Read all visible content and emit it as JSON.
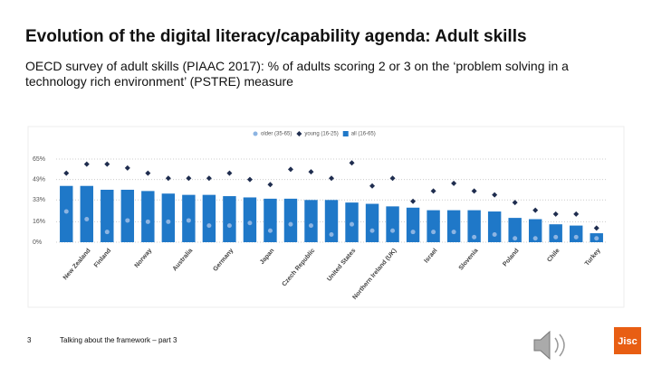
{
  "slide": {
    "title": "Evolution of the digital literacy/capability agenda: Adult skills",
    "subtitle": "OECD survey of adult skills (PIAAC 2017): % of adults scoring 2 or 3 on the ‘problem solving in a technology rich environment’ (PSTRE) measure",
    "page_number": "3",
    "footer": "Talking about the framework – part 3",
    "logo": "Jisc"
  },
  "chart_data": {
    "type": "bar",
    "categories": [
      null,
      "New Zealand",
      "Finland",
      null,
      "Norway",
      null,
      "Australia",
      null,
      "Germany",
      null,
      "Japan",
      null,
      "Czech Republic",
      null,
      "United States",
      null,
      "Northern Ireland (UK)",
      null,
      "Israel",
      null,
      "Slovenia",
      null,
      "Poland",
      null,
      "Chile",
      null,
      "Turkey"
    ],
    "series": [
      {
        "name": "older (35-65)",
        "color": "#8cb4e2",
        "marker": "circle",
        "values": [
          24,
          18,
          8,
          17,
          16,
          16,
          17,
          13,
          13,
          15,
          9,
          14,
          13,
          6,
          14,
          9,
          9,
          8,
          8,
          8,
          4,
          6,
          3,
          3,
          4,
          4,
          3
        ]
      },
      {
        "name": "young (16-25)",
        "color": "#1f2d4f",
        "marker": "diamond",
        "values": [
          54,
          61,
          61,
          58,
          54,
          50,
          50,
          50,
          54,
          49,
          45,
          57,
          55,
          50,
          62,
          44,
          50,
          32,
          40,
          46,
          40,
          37,
          31,
          25,
          22,
          22,
          11
        ]
      },
      {
        "name": "all (16-65)",
        "color": "#1f78c8",
        "marker": "bar",
        "values": [
          44,
          44,
          41,
          41,
          40,
          38,
          37,
          37,
          36,
          35,
          34,
          34,
          33,
          33,
          31,
          30,
          28,
          27,
          25,
          25,
          25,
          24,
          19,
          18,
          14,
          13,
          7
        ]
      }
    ],
    "ylim": [
      0,
      65
    ],
    "yticks": [
      {
        "value": 0,
        "label": "0%"
      },
      {
        "value": 16,
        "label": "16%"
      },
      {
        "value": 33,
        "label": "33%"
      },
      {
        "value": 49,
        "label": "49%"
      },
      {
        "value": 65,
        "label": "65%"
      }
    ],
    "grid": true,
    "legend": "top"
  }
}
